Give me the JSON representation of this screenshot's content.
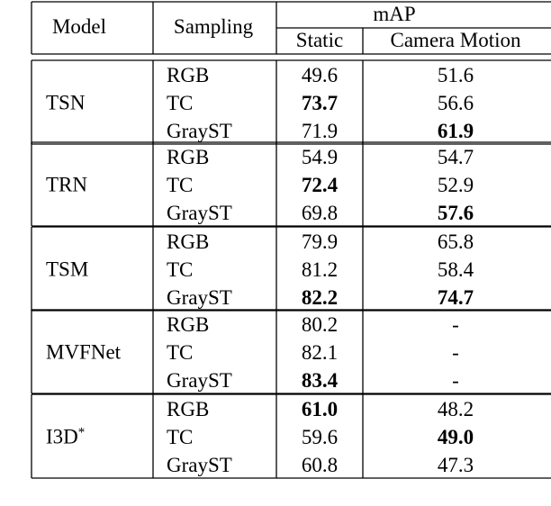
{
  "table": {
    "headers": {
      "model": "Model",
      "sampling": "Sampling",
      "metric": "mAP",
      "static": "Static",
      "camera_motion": "Camera Motion"
    },
    "groups": [
      {
        "model": "TSN",
        "model_sup": "",
        "rows": [
          {
            "sampling": "RGB",
            "static": "49.6",
            "camera": "51.6",
            "static_bold": false,
            "camera_bold": false
          },
          {
            "sampling": "TC",
            "static": "73.7",
            "camera": "56.6",
            "static_bold": true,
            "camera_bold": false
          },
          {
            "sampling": "GrayST",
            "static": "71.9",
            "camera": "61.9",
            "static_bold": false,
            "camera_bold": true
          }
        ]
      },
      {
        "model": "TRN",
        "model_sup": "",
        "rows": [
          {
            "sampling": "RGB",
            "static": "54.9",
            "camera": "54.7",
            "static_bold": false,
            "camera_bold": false
          },
          {
            "sampling": "TC",
            "static": "72.4",
            "camera": "52.9",
            "static_bold": true,
            "camera_bold": false
          },
          {
            "sampling": "GrayST",
            "static": "69.8",
            "camera": "57.6",
            "static_bold": false,
            "camera_bold": true
          }
        ]
      },
      {
        "model": "TSM",
        "model_sup": "",
        "rows": [
          {
            "sampling": "RGB",
            "static": "79.9",
            "camera": "65.8",
            "static_bold": false,
            "camera_bold": false
          },
          {
            "sampling": "TC",
            "static": "81.2",
            "camera": "58.4",
            "static_bold": false,
            "camera_bold": false
          },
          {
            "sampling": "GrayST",
            "static": "82.2",
            "camera": "74.7",
            "static_bold": true,
            "camera_bold": true
          }
        ]
      },
      {
        "model": "MVFNet",
        "model_sup": "",
        "rows": [
          {
            "sampling": "RGB",
            "static": "80.2",
            "camera": "-",
            "static_bold": false,
            "camera_bold": false
          },
          {
            "sampling": "TC",
            "static": "82.1",
            "camera": "-",
            "static_bold": false,
            "camera_bold": false
          },
          {
            "sampling": "GrayST",
            "static": "83.4",
            "camera": "-",
            "static_bold": true,
            "camera_bold": false
          }
        ]
      },
      {
        "model": "I3D",
        "model_sup": "*",
        "rows": [
          {
            "sampling": "RGB",
            "static": "61.0",
            "camera": "48.2",
            "static_bold": true,
            "camera_bold": false
          },
          {
            "sampling": "TC",
            "static": "59.6",
            "camera": "49.0",
            "static_bold": false,
            "camera_bold": true
          },
          {
            "sampling": "GrayST",
            "static": "60.8",
            "camera": "47.3",
            "static_bold": false,
            "camera_bold": false
          }
        ]
      }
    ]
  }
}
